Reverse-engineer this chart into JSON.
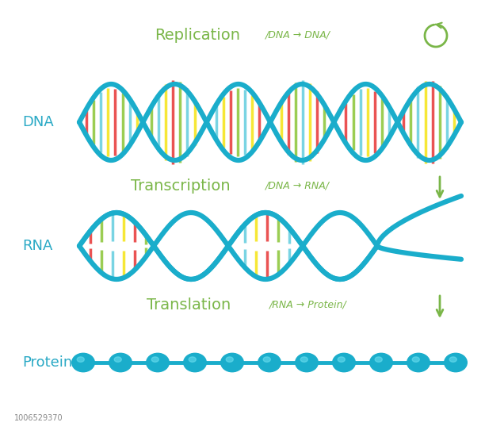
{
  "bg_color": "#ffffff",
  "title_color": "#7ab648",
  "label_color": "#29a9c5",
  "arrow_color": "#7ab648",
  "dna_color": "#1aadcb",
  "base_colors": [
    "#f5e520",
    "#e84040",
    "#90c840",
    "#6ad0e0",
    "#f5e520",
    "#e84040",
    "#90c840",
    "#6ad0e0",
    "#f5e520",
    "#e84040",
    "#90c840",
    "#6ad0e0"
  ],
  "protein_color": "#1aadcb",
  "replication_text": "Replication",
  "replication_sub": "/DNA → DNA/",
  "transcription_text": "Transcription",
  "transcription_sub": "/DNA → RNA/",
  "translation_text": "Translation",
  "translation_sub": "/RNA → Protein/",
  "dna_label": "DNA",
  "rna_label": "RNA",
  "protein_label": "Protein",
  "stock_id": "1006529370"
}
